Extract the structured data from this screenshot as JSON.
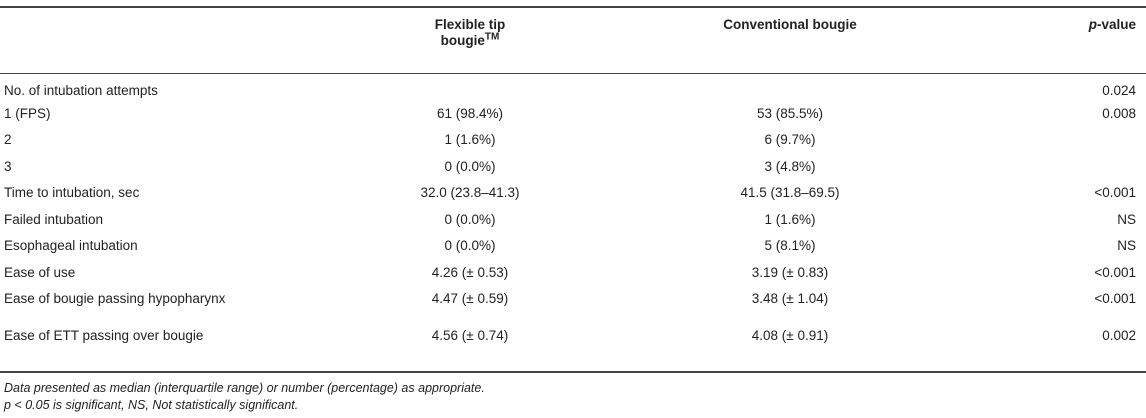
{
  "header": {
    "col_label": "",
    "col_flex_line1": "Flexible tip",
    "col_flex_line2": "bougie",
    "col_flex_sup": "TM",
    "col_conv": "Conventional bougie",
    "col_p_italic": "p",
    "col_p_rest": "-value"
  },
  "rows": [
    {
      "label": "No. of intubation attempts",
      "flex": "",
      "conv": "",
      "p": "0.024"
    },
    {
      "label": "1 (FPS)",
      "flex": "61 (98.4%)",
      "conv": "53 (85.5%)",
      "p": "0.008"
    },
    {
      "label": "2",
      "flex": "1 (1.6%)",
      "conv": "6 (9.7%)",
      "p": ""
    },
    {
      "label": "3",
      "flex": "0 (0.0%)",
      "conv": "3 (4.8%)",
      "p": ""
    },
    {
      "label": "Time to intubation, sec",
      "flex": "32.0 (23.8–41.3)",
      "conv": "41.5 (31.8–69.5)",
      "p": "<0.001"
    },
    {
      "label": "Failed intubation",
      "flex": "0 (0.0%)",
      "conv": "1 (1.6%)",
      "p": "NS"
    },
    {
      "label": "Esophageal intubation",
      "flex": "0 (0.0%)",
      "conv": "5 (8.1%)",
      "p": "NS"
    },
    {
      "label": "Ease of use",
      "flex": "4.26 (± 0.53)",
      "conv": "3.19 (± 0.83)",
      "p": "<0.001"
    },
    {
      "label": "Ease of bougie passing hypopharynx",
      "flex": "4.47 (± 0.59)",
      "conv": "3.48 (± 1.04)",
      "p": "<0.001"
    },
    {
      "label": "Ease of ETT passing over bougie",
      "flex": "4.56 (± 0.74)",
      "conv": "4.08 (± 0.91)",
      "p": "0.002"
    }
  ],
  "notes": {
    "line1": "Data presented as median (interquartile range) or number (percentage) as appropriate.",
    "line2": "p < 0.05 is significant, NS, Not statistically significant."
  }
}
